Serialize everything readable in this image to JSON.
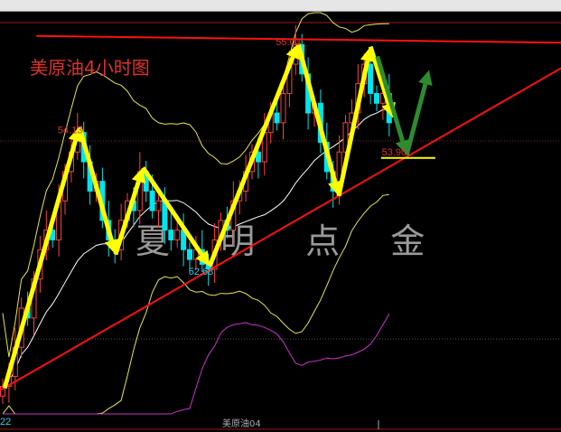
{
  "chart_data": {
    "type": "candlestick",
    "title": "美原油4小时图",
    "instrument_label": "美原油04",
    "watermark": "夏 明 点 金",
    "closes": [
      51.5,
      51.6,
      51.9,
      52.3,
      52.2,
      52.6,
      52.9,
      53.1,
      53.0,
      53.4,
      53.7,
      53.9,
      54.1,
      53.8,
      53.5,
      53.6,
      53.2,
      53.0,
      52.9,
      53.2,
      53.4,
      53.3,
      53.7,
      53.5,
      53.3,
      53.4,
      53.1,
      53.0,
      53.1,
      52.9,
      52.8,
      52.9,
      52.75,
      52.7,
      53.0,
      53.2,
      53.1,
      53.4,
      53.5,
      53.7,
      53.9,
      53.8,
      54.1,
      54.3,
      54.2,
      54.5,
      54.8,
      55.0,
      54.7,
      54.3,
      54.4,
      54.0,
      53.7,
      53.5,
      53.9,
      54.2,
      54.3,
      54.6,
      54.8,
      54.5,
      54.4,
      54.5,
      54.2
    ],
    "price_labels": [
      {
        "text": "55.03",
        "index": 47,
        "price": 55.03,
        "color": "#e03030"
      },
      {
        "text": "54.13",
        "index": 12,
        "price": 54.13,
        "color": "#e03030"
      },
      {
        "text": "52.68",
        "index": 33,
        "price": 52.68,
        "color": "#40c8e0"
      },
      {
        "text": "53.90",
        "index": 64,
        "price": 53.9,
        "color": "#e03030"
      },
      {
        "text": "22",
        "index": 0,
        "price": 51.22,
        "color": "#40c8e0"
      }
    ],
    "yellow_path": [
      [
        0.3,
        51.48
      ],
      [
        12.3,
        54.16
      ],
      [
        18.1,
        52.85
      ],
      [
        22.5,
        53.74
      ],
      [
        33.2,
        52.73
      ],
      [
        47.4,
        55.01
      ],
      [
        53.9,
        53.45
      ],
      [
        59,
        54.98
      ],
      [
        62.6,
        54.25
      ]
    ],
    "green_path": [
      [
        60.1,
        54.88
      ],
      [
        64.8,
        53.87
      ],
      [
        68.4,
        54.74
      ]
    ],
    "support_line": [
      [
        -0.4,
        51.46
      ],
      [
        89.6,
        54.76
      ]
    ],
    "resistance_line": [
      [
        5.4,
        55.09
      ],
      [
        89.6,
        55.02
      ]
    ],
    "target_line": {
      "price": 53.84,
      "from": 60.7,
      "to": 69.4
    },
    "colors": {
      "up": "#ff4040",
      "down": "#00e5ee",
      "boll": "#e6e64a",
      "mid": "#ffffff",
      "lower_indicator": "#cc33cc",
      "trend": "#ff1010",
      "arrow_yellow": "#ffff00",
      "arrow_green": "#2e8b2e"
    }
  }
}
